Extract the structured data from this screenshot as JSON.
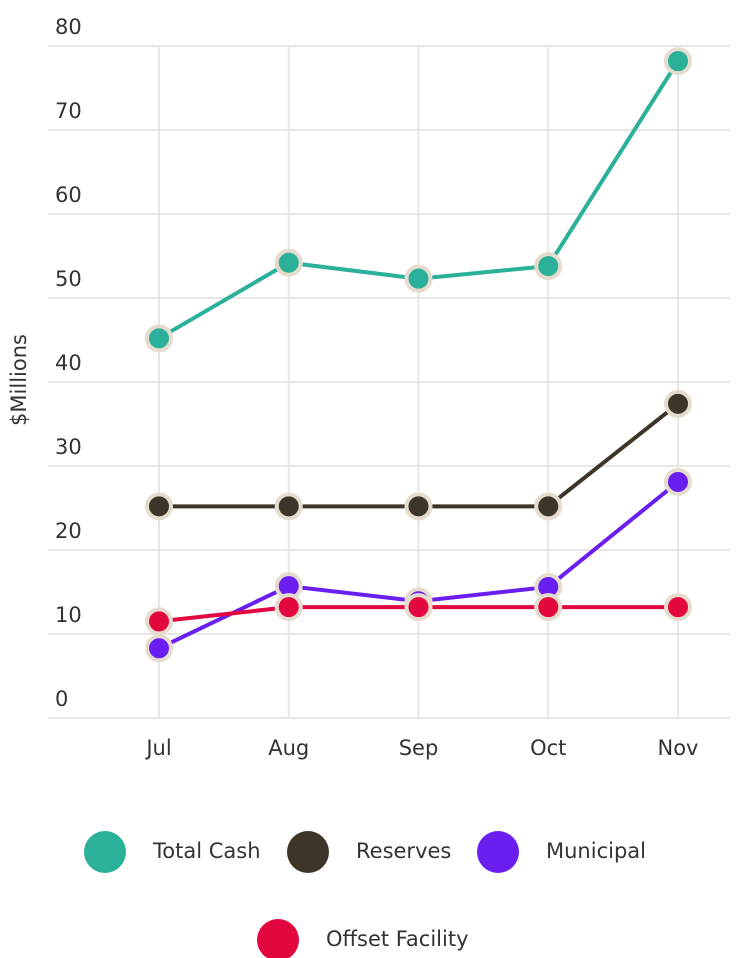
{
  "chart_data": {
    "type": "line",
    "y_label": "$Millions",
    "categories": [
      "Jul",
      "Aug",
      "Sep",
      "Oct",
      "Nov"
    ],
    "series": [
      {
        "name": "Total Cash",
        "color": "#2bb09a",
        "values": [
          45.2,
          54.2,
          52.3,
          53.8,
          78.2
        ]
      },
      {
        "name": "Reserves",
        "color": "#3d3529",
        "values": [
          25.2,
          25.2,
          25.2,
          25.2,
          37.4
        ]
      },
      {
        "name": "Municipal",
        "color": "#6a1ef0",
        "values": [
          8.3,
          15.7,
          13.9,
          15.6,
          28.1
        ]
      },
      {
        "name": "Offset Facility",
        "color": "#e3073f",
        "values": [
          11.5,
          13.2,
          13.2,
          13.2,
          13.2
        ]
      }
    ],
    "ylim": [
      0,
      80
    ],
    "yticks": [
      0,
      10,
      20,
      30,
      40,
      50,
      60,
      70,
      80
    ],
    "grid": true
  }
}
